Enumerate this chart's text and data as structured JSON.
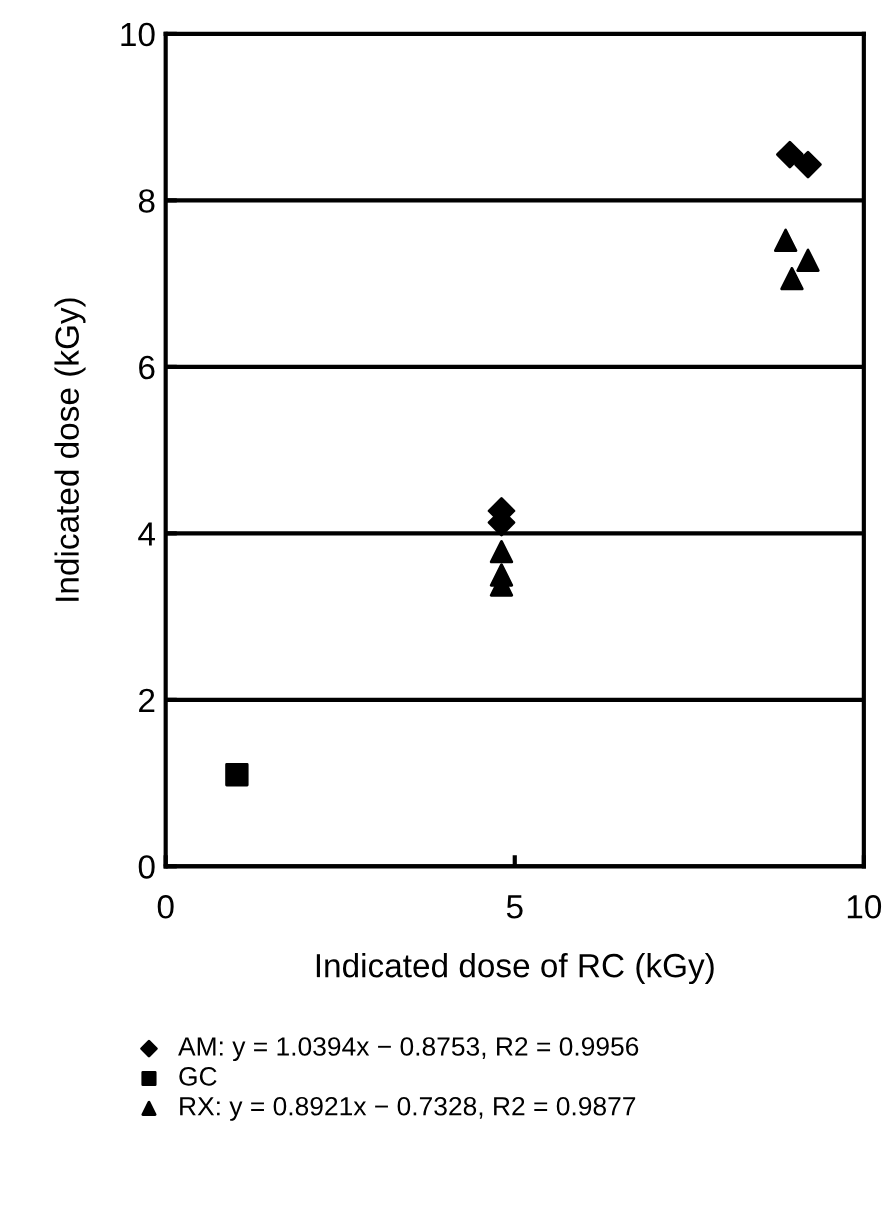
{
  "chart_data": {
    "type": "scatter",
    "xlabel": "Indicated dose of RC (kGy)",
    "ylabel": "Indicated dose (kGy)",
    "xlim": [
      0,
      10
    ],
    "xticks": [
      0,
      5,
      10
    ],
    "ylim": [
      0,
      10
    ],
    "yticks": [
      0,
      2,
      4,
      6,
      8,
      10
    ],
    "grid": "y",
    "legend": "bottom",
    "series": [
      {
        "name": "AM: y = 1.0394x − 0.8753, R2 = 0.9956",
        "color": "#000000",
        "marker": "diamond",
        "x": [
          4.81,
          4.81,
          8.94,
          9.2
        ],
        "values": [
          4.27,
          4.13,
          8.55,
          8.43
        ]
      },
      {
        "name": "GC",
        "color": "#000000",
        "marker": "square",
        "x": [
          1.02
        ],
        "values": [
          1.1
        ]
      },
      {
        "name": "RX: y = 0.8921x − 0.7328, R2 = 0.9877",
        "color": "#000000",
        "marker": "triangle",
        "x": [
          4.81,
          4.81,
          4.81,
          8.88,
          9.2,
          8.97
        ],
        "values": [
          3.78,
          3.5,
          3.38,
          7.52,
          7.28,
          7.06
        ]
      }
    ]
  }
}
